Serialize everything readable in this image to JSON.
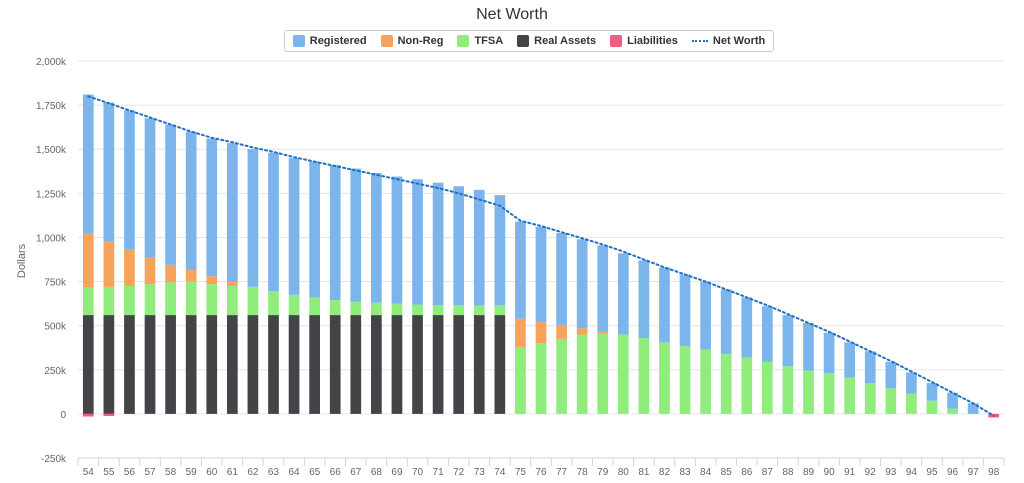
{
  "chart_data": {
    "type": "bar",
    "stacked": true,
    "title": "Net Worth",
    "ylabel": "Dollars",
    "xlabel": "",
    "ylim": [
      -250000,
      2000000
    ],
    "yticks": [
      -250000,
      0,
      250000,
      500000,
      750000,
      1000000,
      1250000,
      1500000,
      1750000,
      2000000
    ],
    "ytick_labels": [
      "-250k",
      "0",
      "250k",
      "500k",
      "750k",
      "1,000k",
      "1,250k",
      "1,500k",
      "1,750k",
      "2,000k"
    ],
    "grid": "horizontal",
    "legend_position": "top-center",
    "categories": [
      "54",
      "55",
      "56",
      "57",
      "58",
      "59",
      "60",
      "61",
      "62",
      "63",
      "64",
      "65",
      "66",
      "67",
      "68",
      "69",
      "70",
      "71",
      "72",
      "73",
      "74",
      "75",
      "76",
      "77",
      "78",
      "79",
      "80",
      "81",
      "82",
      "83",
      "84",
      "85",
      "86",
      "87",
      "88",
      "89",
      "90",
      "91",
      "92",
      "93",
      "94",
      "95",
      "96",
      "97",
      "98"
    ],
    "series": [
      {
        "name": "Real Assets",
        "color": "#434348",
        "values": [
          560000,
          560000,
          560000,
          560000,
          560000,
          560000,
          560000,
          560000,
          560000,
          560000,
          560000,
          560000,
          560000,
          560000,
          560000,
          560000,
          560000,
          560000,
          560000,
          560000,
          560000,
          0,
          0,
          0,
          0,
          0,
          0,
          0,
          0,
          0,
          0,
          0,
          0,
          0,
          0,
          0,
          0,
          0,
          0,
          0,
          0,
          0,
          0,
          0,
          0
        ]
      },
      {
        "name": "TFSA",
        "color": "#90ed7d",
        "values": [
          155000,
          160000,
          165000,
          175000,
          185000,
          190000,
          175000,
          165000,
          160000,
          135000,
          115000,
          100000,
          85000,
          75000,
          70000,
          65000,
          60000,
          55000,
          55000,
          55000,
          55000,
          380000,
          400000,
          425000,
          450000,
          455000,
          450000,
          430000,
          405000,
          385000,
          365000,
          340000,
          320000,
          295000,
          270000,
          245000,
          230000,
          205000,
          175000,
          145000,
          115000,
          75000,
          30000,
          0,
          0
        ]
      },
      {
        "name": "Non-Reg",
        "color": "#f7a35c",
        "values": [
          310000,
          255000,
          205000,
          150000,
          100000,
          65000,
          45000,
          25000,
          0,
          0,
          0,
          0,
          0,
          0,
          0,
          0,
          0,
          0,
          0,
          0,
          0,
          160000,
          120000,
          80000,
          35000,
          15000,
          0,
          0,
          0,
          0,
          0,
          0,
          0,
          0,
          0,
          0,
          0,
          0,
          0,
          0,
          0,
          0,
          0,
          0,
          0
        ]
      },
      {
        "name": "Registered",
        "color": "#7cb5ec",
        "values": [
          785000,
          790000,
          790000,
          790000,
          795000,
          785000,
          780000,
          785000,
          780000,
          785000,
          775000,
          770000,
          765000,
          755000,
          735000,
          720000,
          710000,
          695000,
          675000,
          655000,
          625000,
          550000,
          540000,
          520000,
          505000,
          485000,
          460000,
          440000,
          425000,
          405000,
          385000,
          365000,
          340000,
          315000,
          290000,
          270000,
          230000,
          200000,
          180000,
          150000,
          120000,
          100000,
          90000,
          60000,
          0
        ]
      },
      {
        "name": "Liabilities",
        "color": "#f15c80",
        "values": [
          -15000,
          -12000,
          0,
          0,
          0,
          0,
          0,
          0,
          0,
          0,
          0,
          0,
          0,
          0,
          0,
          0,
          0,
          0,
          0,
          0,
          0,
          0,
          0,
          0,
          0,
          0,
          0,
          0,
          0,
          0,
          0,
          0,
          0,
          0,
          0,
          0,
          0,
          0,
          0,
          0,
          0,
          0,
          0,
          0,
          -20000
        ]
      },
      {
        "name": "Net Worth",
        "color": "#1f6fc5",
        "type": "line",
        "style": "dotted",
        "values": [
          1800000,
          1760000,
          1720000,
          1680000,
          1640000,
          1600000,
          1565000,
          1540000,
          1510000,
          1485000,
          1455000,
          1430000,
          1405000,
          1380000,
          1355000,
          1330000,
          1305000,
          1280000,
          1250000,
          1215000,
          1180000,
          1095000,
          1065000,
          1030000,
          995000,
          960000,
          920000,
          875000,
          830000,
          790000,
          750000,
          705000,
          660000,
          615000,
          565000,
          515000,
          465000,
          410000,
          355000,
          300000,
          240000,
          180000,
          120000,
          60000,
          -10000
        ]
      }
    ]
  },
  "legend": {
    "items": [
      {
        "label": "Registered",
        "color": "#7cb5ec"
      },
      {
        "label": "Non-Reg",
        "color": "#f7a35c"
      },
      {
        "label": "TFSA",
        "color": "#90ed7d"
      },
      {
        "label": "Real Assets",
        "color": "#434348"
      },
      {
        "label": "Liabilities",
        "color": "#f15c80"
      },
      {
        "label": "Net Worth",
        "color": "#1f6fc5"
      }
    ]
  }
}
